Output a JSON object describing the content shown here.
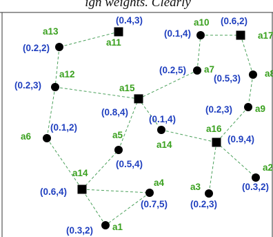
{
  "header_text": "ign weights. Clearly",
  "nodes": [
    {
      "id": "a11",
      "label": "a11",
      "coord": "(0.4,3)",
      "shape": "square"
    },
    {
      "id": "a13",
      "label": "a13",
      "coord": "(0.2,2)",
      "shape": "circle"
    },
    {
      "id": "a10",
      "label": "a10",
      "coord": "(0.1,4)",
      "shape": "circle"
    },
    {
      "id": "a17",
      "label": "a17",
      "coord": "(0.6,2)",
      "shape": "square"
    },
    {
      "id": "a12",
      "label": "a12",
      "coord": "(0.2,3)",
      "shape": "circle"
    },
    {
      "id": "a7",
      "label": "a7",
      "coord": "(0.2,5)",
      "shape": "circle"
    },
    {
      "id": "a8",
      "label": "a8",
      "coord": "(0.5,3)",
      "shape": "circle"
    },
    {
      "id": "a15",
      "label": "a15",
      "coord": "(0.8,4)",
      "shape": "square"
    },
    {
      "id": "a9",
      "label": "a9",
      "coord": "(0.2,3)",
      "shape": "circle"
    },
    {
      "id": "a6",
      "label": "a6",
      "coord": "(0.1,2)",
      "shape": "circle"
    },
    {
      "id": "a14b",
      "label": "a14",
      "coord": "(0.1,4)",
      "shape": "circle"
    },
    {
      "id": "a16",
      "label": "a16",
      "coord": "(0.9,4)",
      "shape": "square"
    },
    {
      "id": "a5",
      "label": "a5",
      "coord": "(0.5,4)",
      "shape": "circle"
    },
    {
      "id": "a2",
      "label": "a2",
      "coord": "(0.3,2)",
      "shape": "circle"
    },
    {
      "id": "a14",
      "label": "a14",
      "coord": "(0.6,4)",
      "shape": "square"
    },
    {
      "id": "a4",
      "label": "a4",
      "coord": "(0.7,5)",
      "shape": "circle"
    },
    {
      "id": "a3",
      "label": "a3",
      "coord": "(0.2,3)",
      "shape": "circle"
    },
    {
      "id": "a1",
      "label": "a1",
      "coord": "(0.3,2)",
      "shape": "circle"
    }
  ],
  "edges": [
    [
      "a11",
      "a13"
    ],
    [
      "a13",
      "a12"
    ],
    [
      "a12",
      "a15"
    ],
    [
      "a12",
      "a6"
    ],
    [
      "a6",
      "a14"
    ],
    [
      "a14",
      "a5"
    ],
    [
      "a14",
      "a4"
    ],
    [
      "a4",
      "a1"
    ],
    [
      "a1",
      "a14"
    ],
    [
      "a5",
      "a15"
    ],
    [
      "a15",
      "a7"
    ],
    [
      "a7",
      "a10"
    ],
    [
      "a10",
      "a17"
    ],
    [
      "a17",
      "a8"
    ],
    [
      "a8",
      "a9"
    ],
    [
      "a9",
      "a16"
    ],
    [
      "a15",
      "a14b"
    ],
    [
      "a14b",
      "a16"
    ],
    [
      "a16",
      "a2"
    ],
    [
      "a16",
      "a3"
    ]
  ]
}
